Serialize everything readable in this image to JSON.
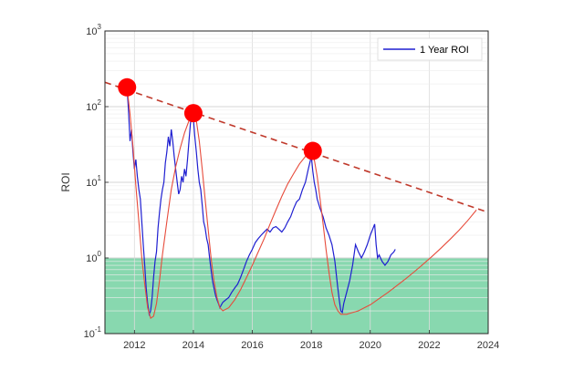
{
  "chart_data": {
    "type": "line",
    "title": "",
    "xlabel": "",
    "ylabel": "ROI",
    "x_scale": "linear",
    "y_scale": "log",
    "xlim": [
      2011,
      2024
    ],
    "ylim": [
      0.1,
      1000
    ],
    "x_ticks": [
      "2012",
      "2014",
      "2016",
      "2018",
      "2020",
      "2022",
      "2024"
    ],
    "y_ticks": [
      {
        "base": "10",
        "exp": "-1",
        "value": 0.1
      },
      {
        "base": "10",
        "exp": "0",
        "value": 1
      },
      {
        "base": "10",
        "exp": "1",
        "value": 10
      },
      {
        "base": "10",
        "exp": "2",
        "value": 100
      },
      {
        "base": "10",
        "exp": "3",
        "value": 1000
      }
    ],
    "grid": true,
    "legend_position": "top-right",
    "shaded_region": {
      "y_from": 0.1,
      "y_to": 1,
      "color": "#7bd4a6"
    },
    "series": [
      {
        "name": "1 Year ROI",
        "kind": "line",
        "color": "#1f1fd1",
        "points": [
          [
            2011.75,
            180
          ],
          [
            2011.8,
            90
          ],
          [
            2011.85,
            35
          ],
          [
            2011.9,
            50
          ],
          [
            2011.95,
            25
          ],
          [
            2012.0,
            15
          ],
          [
            2012.05,
            20
          ],
          [
            2012.1,
            12
          ],
          [
            2012.15,
            8
          ],
          [
            2012.2,
            6
          ],
          [
            2012.25,
            3
          ],
          [
            2012.3,
            1.5
          ],
          [
            2012.35,
            0.8
          ],
          [
            2012.4,
            0.4
          ],
          [
            2012.45,
            0.25
          ],
          [
            2012.5,
            0.18
          ],
          [
            2012.55,
            0.2
          ],
          [
            2012.6,
            0.3
          ],
          [
            2012.65,
            0.55
          ],
          [
            2012.7,
            0.9
          ],
          [
            2012.75,
            1.2
          ],
          [
            2012.8,
            2.5
          ],
          [
            2012.85,
            4
          ],
          [
            2012.9,
            6
          ],
          [
            2012.95,
            8
          ],
          [
            2013.0,
            10
          ],
          [
            2013.05,
            18
          ],
          [
            2013.1,
            25
          ],
          [
            2013.15,
            40
          ],
          [
            2013.2,
            30
          ],
          [
            2013.25,
            50
          ],
          [
            2013.3,
            35
          ],
          [
            2013.35,
            22
          ],
          [
            2013.4,
            15
          ],
          [
            2013.45,
            10
          ],
          [
            2013.5,
            7
          ],
          [
            2013.55,
            8
          ],
          [
            2013.6,
            12
          ],
          [
            2013.65,
            10
          ],
          [
            2013.7,
            15
          ],
          [
            2013.75,
            12
          ],
          [
            2013.8,
            20
          ],
          [
            2013.85,
            35
          ],
          [
            2013.9,
            60
          ],
          [
            2013.95,
            80
          ],
          [
            2014.0,
            70
          ],
          [
            2014.05,
            40
          ],
          [
            2014.1,
            25
          ],
          [
            2014.15,
            15
          ],
          [
            2014.2,
            10
          ],
          [
            2014.25,
            8
          ],
          [
            2014.3,
            5
          ],
          [
            2014.35,
            3
          ],
          [
            2014.4,
            2.5
          ],
          [
            2014.45,
            1.8
          ],
          [
            2014.5,
            1.5
          ],
          [
            2014.55,
            1.0
          ],
          [
            2014.6,
            0.7
          ],
          [
            2014.65,
            0.5
          ],
          [
            2014.7,
            0.4
          ],
          [
            2014.75,
            0.32
          ],
          [
            2014.8,
            0.28
          ],
          [
            2014.85,
            0.25
          ],
          [
            2014.9,
            0.22
          ],
          [
            2014.95,
            0.24
          ],
          [
            2015.0,
            0.26
          ],
          [
            2015.1,
            0.28
          ],
          [
            2015.2,
            0.3
          ],
          [
            2015.3,
            0.35
          ],
          [
            2015.4,
            0.4
          ],
          [
            2015.5,
            0.45
          ],
          [
            2015.6,
            0.55
          ],
          [
            2015.7,
            0.7
          ],
          [
            2015.8,
            0.9
          ],
          [
            2015.9,
            1.1
          ],
          [
            2016.0,
            1.3
          ],
          [
            2016.1,
            1.6
          ],
          [
            2016.2,
            1.8
          ],
          [
            2016.3,
            2.0
          ],
          [
            2016.4,
            2.2
          ],
          [
            2016.5,
            2.4
          ],
          [
            2016.6,
            2.2
          ],
          [
            2016.7,
            2.5
          ],
          [
            2016.8,
            2.6
          ],
          [
            2016.9,
            2.4
          ],
          [
            2017.0,
            2.2
          ],
          [
            2017.1,
            2.5
          ],
          [
            2017.2,
            3.0
          ],
          [
            2017.3,
            3.5
          ],
          [
            2017.4,
            4.5
          ],
          [
            2017.5,
            5.5
          ],
          [
            2017.6,
            6.0
          ],
          [
            2017.7,
            8
          ],
          [
            2017.8,
            10
          ],
          [
            2017.9,
            15
          ],
          [
            2018.0,
            22
          ],
          [
            2018.05,
            14
          ],
          [
            2018.1,
            10
          ],
          [
            2018.15,
            8
          ],
          [
            2018.2,
            6
          ],
          [
            2018.3,
            4.5
          ],
          [
            2018.4,
            3.5
          ],
          [
            2018.5,
            2.5
          ],
          [
            2018.6,
            2.0
          ],
          [
            2018.7,
            1.5
          ],
          [
            2018.8,
            0.9
          ],
          [
            2018.85,
            0.6
          ],
          [
            2018.9,
            0.4
          ],
          [
            2018.95,
            0.28
          ],
          [
            2019.0,
            0.2
          ],
          [
            2019.05,
            0.19
          ],
          [
            2019.1,
            0.25
          ],
          [
            2019.2,
            0.35
          ],
          [
            2019.3,
            0.5
          ],
          [
            2019.4,
            0.8
          ],
          [
            2019.5,
            1.5
          ],
          [
            2019.6,
            1.2
          ],
          [
            2019.7,
            1.0
          ],
          [
            2019.8,
            1.2
          ],
          [
            2019.9,
            1.5
          ],
          [
            2020.0,
            2.0
          ],
          [
            2020.1,
            2.5
          ],
          [
            2020.15,
            2.8
          ],
          [
            2020.2,
            1.5
          ],
          [
            2020.25,
            1.0
          ],
          [
            2020.3,
            1.1
          ],
          [
            2020.4,
            0.9
          ],
          [
            2020.5,
            0.8
          ],
          [
            2020.6,
            0.9
          ],
          [
            2020.7,
            1.1
          ],
          [
            2020.8,
            1.2
          ],
          [
            2020.85,
            1.3
          ]
        ]
      },
      {
        "kind": "fit-curve",
        "color": "#e74c3c",
        "points": [
          [
            2011.75,
            180
          ],
          [
            2011.85,
            80
          ],
          [
            2011.95,
            30
          ],
          [
            2012.05,
            9
          ],
          [
            2012.15,
            3
          ],
          [
            2012.25,
            1.0
          ],
          [
            2012.35,
            0.45
          ],
          [
            2012.45,
            0.22
          ],
          [
            2012.55,
            0.16
          ],
          [
            2012.65,
            0.17
          ],
          [
            2012.75,
            0.25
          ],
          [
            2012.85,
            0.5
          ],
          [
            2012.95,
            1.1
          ],
          [
            2013.1,
            3
          ],
          [
            2013.25,
            8
          ],
          [
            2013.4,
            16
          ],
          [
            2013.55,
            28
          ],
          [
            2013.7,
            45
          ],
          [
            2013.85,
            65
          ],
          [
            2014.0,
            82
          ],
          [
            2014.1,
            65
          ],
          [
            2014.2,
            35
          ],
          [
            2014.3,
            15
          ],
          [
            2014.4,
            6
          ],
          [
            2014.5,
            2.4
          ],
          [
            2014.6,
            1.0
          ],
          [
            2014.7,
            0.5
          ],
          [
            2014.8,
            0.3
          ],
          [
            2014.9,
            0.22
          ],
          [
            2015.0,
            0.2
          ],
          [
            2015.2,
            0.22
          ],
          [
            2015.4,
            0.28
          ],
          [
            2015.6,
            0.38
          ],
          [
            2015.8,
            0.55
          ],
          [
            2016.0,
            0.8
          ],
          [
            2016.2,
            1.2
          ],
          [
            2016.4,
            1.8
          ],
          [
            2016.6,
            2.8
          ],
          [
            2016.8,
            4.3
          ],
          [
            2017.0,
            6.5
          ],
          [
            2017.2,
            9.5
          ],
          [
            2017.4,
            13
          ],
          [
            2017.6,
            17.5
          ],
          [
            2017.8,
            22
          ],
          [
            2018.0,
            26
          ],
          [
            2018.1,
            20
          ],
          [
            2018.2,
            12
          ],
          [
            2018.3,
            6
          ],
          [
            2018.4,
            2.8
          ],
          [
            2018.5,
            1.3
          ],
          [
            2018.6,
            0.65
          ],
          [
            2018.7,
            0.35
          ],
          [
            2018.8,
            0.24
          ],
          [
            2018.9,
            0.2
          ],
          [
            2019.0,
            0.18
          ],
          [
            2019.2,
            0.18
          ],
          [
            2019.4,
            0.19
          ],
          [
            2019.6,
            0.2
          ],
          [
            2019.8,
            0.22
          ],
          [
            2020.0,
            0.24
          ],
          [
            2020.3,
            0.29
          ],
          [
            2020.6,
            0.35
          ],
          [
            2020.9,
            0.43
          ],
          [
            2021.2,
            0.53
          ],
          [
            2021.5,
            0.66
          ],
          [
            2021.8,
            0.83
          ],
          [
            2022.1,
            1.05
          ],
          [
            2022.4,
            1.35
          ],
          [
            2022.7,
            1.75
          ],
          [
            2023.0,
            2.3
          ],
          [
            2023.3,
            3.1
          ],
          [
            2023.6,
            4.3
          ]
        ]
      },
      {
        "kind": "trend-line",
        "color": "#c0392b",
        "style": "dashed",
        "points": [
          [
            2011.0,
            210
          ],
          [
            2024.0,
            4.0
          ]
        ]
      }
    ],
    "peaks": {
      "color": "#ff0000",
      "points": [
        [
          2011.75,
          180
        ],
        [
          2014.0,
          82
        ],
        [
          2018.05,
          26
        ]
      ]
    },
    "legend": {
      "label": "1 Year ROI",
      "color": "#1f1fd1"
    }
  }
}
